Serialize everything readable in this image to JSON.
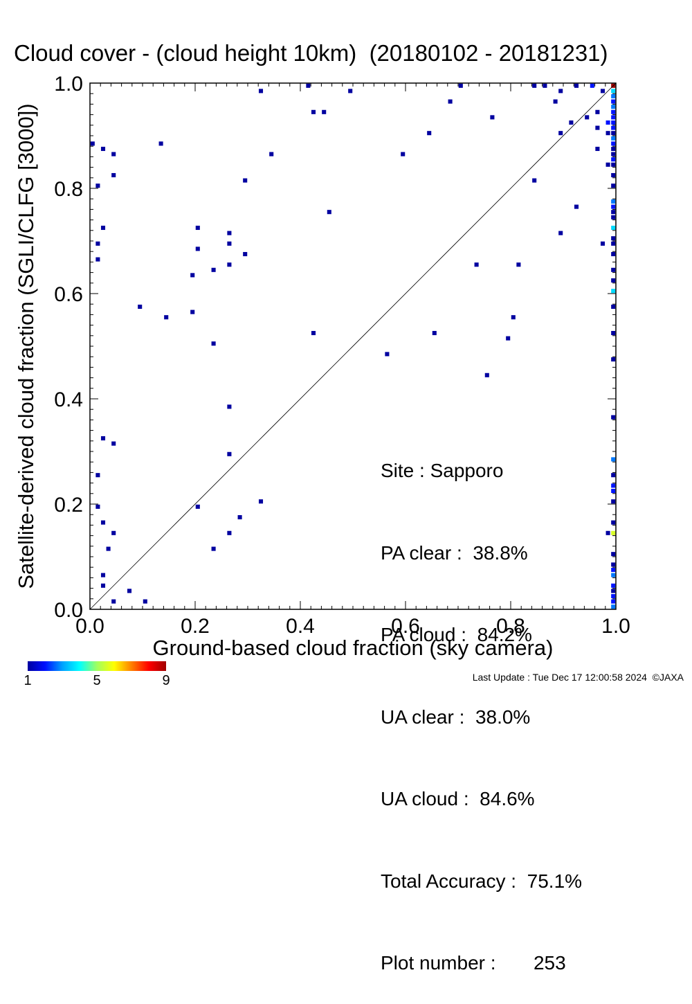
{
  "title": "Cloud cover - (cloud height 10km)  (20180102 - 20181231)",
  "stats": {
    "site": "Site : Sapporo",
    "pa_clear": "PA clear :  38.8%",
    "pa_cloud": "PA cloud :  84.2%",
    "ua_clear": "UA clear :  38.0%",
    "ua_cloud": "UA cloud :  84.6%",
    "total_accuracy": "Total Accuracy :  75.1%",
    "plot_number": "Plot number :       253"
  },
  "colorbar": {
    "labels": [
      "1",
      "5",
      "9"
    ],
    "min": 1,
    "max": 9
  },
  "footer": "Last Update : Tue Dec 17 12:00:58 2024  ©JAXA",
  "chart_data": {
    "type": "heatmap",
    "title": "Cloud cover - (cloud height 10km)  (20180102 - 20181231)",
    "xlabel": "Ground-based cloud fraction (sky camera)",
    "ylabel": "Satellite-derived cloud fraction (SGLI/CLFG [3000])",
    "xlim": [
      0,
      1
    ],
    "ylim": [
      0,
      1
    ],
    "xticks": [
      "0.0",
      "0.2",
      "0.4",
      "0.6",
      "0.8",
      "1.0"
    ],
    "yticks": [
      "0.0",
      "0.2",
      "0.4",
      "0.6",
      "0.8",
      "1.0"
    ],
    "reference_line": "y = x",
    "color_scale": {
      "min": 1,
      "max": 9,
      "colormap": "rainbow"
    },
    "points": [
      [
        0.005,
        0.885,
        1
      ],
      [
        0.015,
        0.805,
        1
      ],
      [
        0.025,
        0.875,
        1
      ],
      [
        0.045,
        0.865,
        1
      ],
      [
        0.045,
        0.825,
        1
      ],
      [
        0.025,
        0.725,
        1
      ],
      [
        0.015,
        0.695,
        1
      ],
      [
        0.015,
        0.665,
        1
      ],
      [
        0.095,
        0.575,
        1
      ],
      [
        0.135,
        0.885,
        1
      ],
      [
        0.145,
        0.555,
        1
      ],
      [
        0.195,
        0.635,
        1
      ],
      [
        0.195,
        0.565,
        1
      ],
      [
        0.205,
        0.725,
        1
      ],
      [
        0.205,
        0.685,
        1
      ],
      [
        0.235,
        0.645,
        1
      ],
      [
        0.235,
        0.505,
        1
      ],
      [
        0.265,
        0.715,
        1
      ],
      [
        0.265,
        0.695,
        1
      ],
      [
        0.265,
        0.655,
        1
      ],
      [
        0.295,
        0.815,
        1
      ],
      [
        0.295,
        0.675,
        1
      ],
      [
        0.325,
        0.985,
        1
      ],
      [
        0.345,
        0.865,
        1
      ],
      [
        0.415,
        0.995,
        1
      ],
      [
        0.425,
        0.945,
        1
      ],
      [
        0.445,
        0.945,
        1
      ],
      [
        0.425,
        0.525,
        1
      ],
      [
        0.455,
        0.755,
        1
      ],
      [
        0.495,
        0.985,
        1
      ],
      [
        0.565,
        0.485,
        1
      ],
      [
        0.595,
        0.865,
        1
      ],
      [
        0.645,
        0.905,
        1
      ],
      [
        0.655,
        0.525,
        1
      ],
      [
        0.685,
        0.965,
        1
      ],
      [
        0.705,
        0.995,
        1
      ],
      [
        0.735,
        0.655,
        1
      ],
      [
        0.755,
        0.445,
        1
      ],
      [
        0.765,
        0.935,
        1
      ],
      [
        0.795,
        0.515,
        1
      ],
      [
        0.805,
        0.555,
        1
      ],
      [
        0.815,
        0.655,
        1
      ],
      [
        0.845,
        0.995,
        1
      ],
      [
        0.845,
        0.815,
        1
      ],
      [
        0.865,
        0.995,
        1
      ],
      [
        0.885,
        0.965,
        1
      ],
      [
        0.895,
        0.985,
        1
      ],
      [
        0.895,
        0.905,
        1
      ],
      [
        0.895,
        0.715,
        1
      ],
      [
        0.915,
        0.925,
        1
      ],
      [
        0.925,
        0.995,
        1
      ],
      [
        0.925,
        0.765,
        1
      ],
      [
        0.945,
        0.935,
        1
      ],
      [
        0.955,
        0.995,
        2
      ],
      [
        0.965,
        0.945,
        1
      ],
      [
        0.965,
        0.915,
        1
      ],
      [
        0.965,
        0.875,
        1
      ],
      [
        0.975,
        0.985,
        1
      ],
      [
        0.975,
        0.695,
        1
      ],
      [
        0.985,
        0.925,
        2
      ],
      [
        0.985,
        0.905,
        1
      ],
      [
        0.985,
        0.845,
        1
      ],
      [
        0.985,
        0.145,
        1
      ],
      [
        0.995,
        0.995,
        9
      ],
      [
        0.995,
        0.985,
        4
      ],
      [
        0.995,
        0.975,
        3
      ],
      [
        0.995,
        0.965,
        2
      ],
      [
        0.995,
        0.955,
        3
      ],
      [
        0.995,
        0.945,
        2
      ],
      [
        0.995,
        0.935,
        2
      ],
      [
        0.995,
        0.925,
        2
      ],
      [
        0.995,
        0.915,
        2
      ],
      [
        0.995,
        0.905,
        1
      ],
      [
        0.995,
        0.895,
        3
      ],
      [
        0.995,
        0.885,
        2
      ],
      [
        0.995,
        0.875,
        1
      ],
      [
        0.995,
        0.865,
        1
      ],
      [
        0.995,
        0.855,
        2
      ],
      [
        0.995,
        0.845,
        1
      ],
      [
        0.995,
        0.825,
        1
      ],
      [
        0.995,
        0.805,
        1
      ],
      [
        0.995,
        0.775,
        3
      ],
      [
        0.995,
        0.765,
        2
      ],
      [
        0.995,
        0.755,
        1
      ],
      [
        0.995,
        0.745,
        1
      ],
      [
        0.995,
        0.725,
        4
      ],
      [
        0.995,
        0.705,
        1
      ],
      [
        0.995,
        0.695,
        1
      ],
      [
        0.995,
        0.675,
        1
      ],
      [
        0.995,
        0.645,
        1
      ],
      [
        0.995,
        0.625,
        1
      ],
      [
        0.995,
        0.605,
        4
      ],
      [
        0.995,
        0.575,
        1
      ],
      [
        0.995,
        0.525,
        1
      ],
      [
        0.995,
        0.475,
        1
      ],
      [
        0.995,
        0.365,
        1
      ],
      [
        0.995,
        0.285,
        3
      ],
      [
        0.995,
        0.255,
        1
      ],
      [
        0.995,
        0.235,
        2
      ],
      [
        0.995,
        0.225,
        2
      ],
      [
        0.995,
        0.205,
        1
      ],
      [
        0.995,
        0.165,
        1
      ],
      [
        0.995,
        0.145,
        6
      ],
      [
        0.995,
        0.105,
        1
      ],
      [
        0.995,
        0.085,
        1
      ],
      [
        0.995,
        0.075,
        2
      ],
      [
        0.995,
        0.065,
        3
      ],
      [
        0.995,
        0.045,
        2
      ],
      [
        0.995,
        0.035,
        1
      ],
      [
        0.995,
        0.025,
        2
      ],
      [
        0.995,
        0.015,
        2
      ],
      [
        0.995,
        0.005,
        3
      ],
      [
        0.015,
        0.255,
        1
      ],
      [
        0.025,
        0.325,
        1
      ],
      [
        0.045,
        0.315,
        1
      ],
      [
        0.015,
        0.195,
        1
      ],
      [
        0.025,
        0.165,
        1
      ],
      [
        0.045,
        0.145,
        1
      ],
      [
        0.035,
        0.115,
        1
      ],
      [
        0.025,
        0.065,
        1
      ],
      [
        0.025,
        0.045,
        1
      ],
      [
        0.045,
        0.015,
        1
      ],
      [
        0.075,
        0.035,
        1
      ],
      [
        0.105,
        0.015,
        1
      ],
      [
        0.205,
        0.195,
        1
      ],
      [
        0.235,
        0.115,
        1
      ],
      [
        0.265,
        0.385,
        1
      ],
      [
        0.265,
        0.295,
        1
      ],
      [
        0.265,
        0.145,
        1
      ],
      [
        0.285,
        0.175,
        1
      ],
      [
        0.325,
        0.205,
        1
      ]
    ]
  }
}
